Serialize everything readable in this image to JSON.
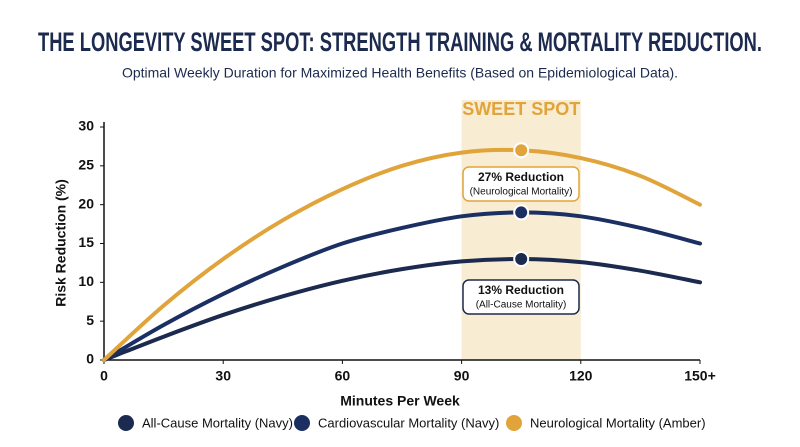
{
  "chart_data": {
    "type": "line",
    "title": "THE LONGEVITY SWEET SPOT: STRENGTH TRAINING & MORTALITY REDUCTION.",
    "subtitle": "Optimal Weekly Duration for Maximized Health Benefits (Based on Epidemiological Data).",
    "x_label": "Minutes Per Week",
    "y_label": "Risk Reduction (%)",
    "x": [
      0,
      15,
      30,
      45,
      60,
      75,
      90,
      105,
      120,
      135,
      150
    ],
    "xlim": [
      0,
      150
    ],
    "xticks": [
      0,
      30,
      60,
      90,
      120,
      {
        "value": 150,
        "label": "150+"
      }
    ],
    "ylim": [
      0,
      30
    ],
    "yticks": [
      0,
      5,
      10,
      15,
      20,
      25,
      30
    ],
    "grid": false,
    "legend": "bottom",
    "series": [
      {
        "name": "All-Cause Mortality (Navy)",
        "color": "#1b2a4e",
        "values": [
          0,
          3,
          5.8,
          8.2,
          10.2,
          11.7,
          12.7,
          13,
          12.6,
          11.5,
          10
        ]
      },
      {
        "name": "Cardiovascular Mortality (Navy)",
        "color": "#1b2f63",
        "values": [
          0,
          4.5,
          8.5,
          12,
          15,
          17,
          18.5,
          19,
          18.5,
          17,
          15
        ]
      },
      {
        "name": "Neurological Mortality (Amber)",
        "color": "#e0a43a",
        "values": [
          0,
          7,
          13,
          18,
          22,
          25,
          26.7,
          27,
          26,
          23.7,
          20
        ]
      }
    ],
    "sweet_spot": {
      "label": "SWEET SPOT",
      "range": [
        90,
        120
      ]
    },
    "annotations": [
      {
        "title": "27% Reduction",
        "subtitle": "(Neurological Mortality)"
      },
      {
        "title": "13% Reduction",
        "subtitle": "(All-Cause Mortality)"
      }
    ]
  }
}
